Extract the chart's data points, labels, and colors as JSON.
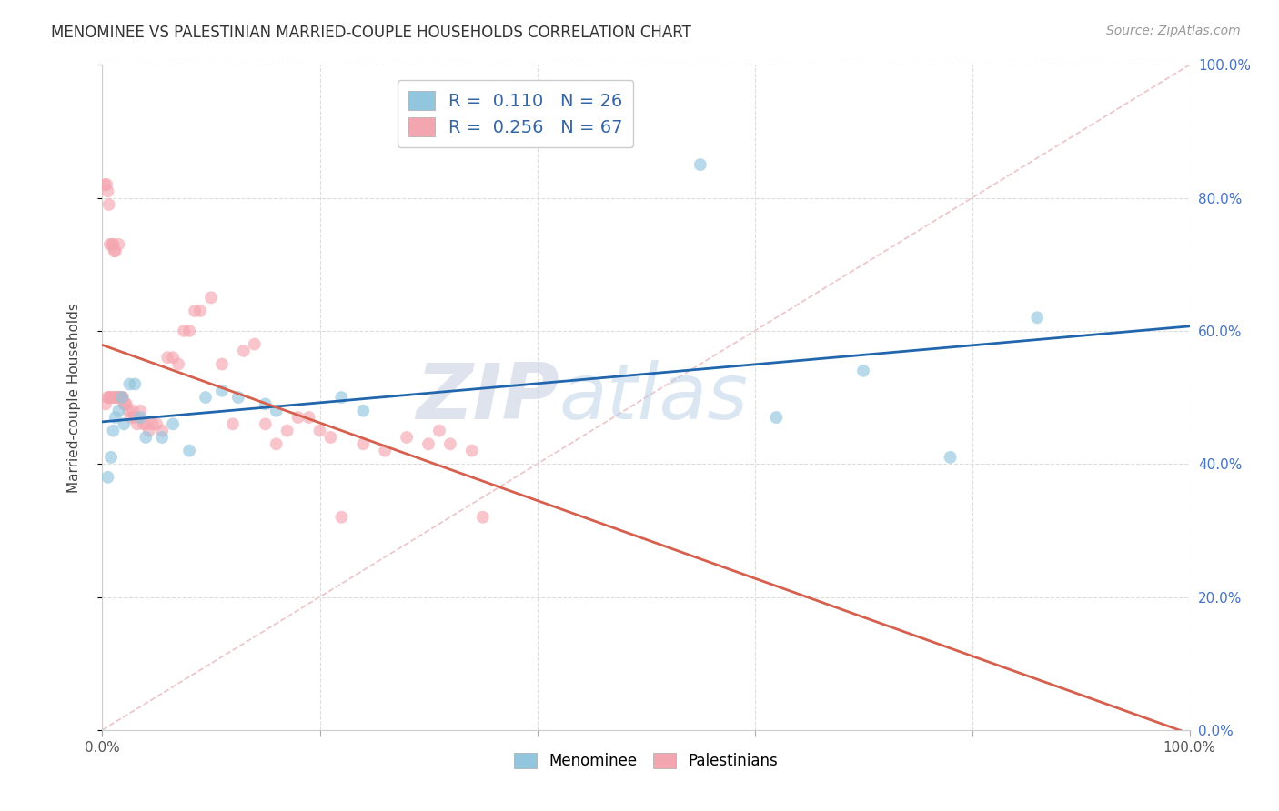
{
  "title": "MENOMINEE VS PALESTINIAN MARRIED-COUPLE HOUSEHOLDS CORRELATION CHART",
  "source": "Source: ZipAtlas.com",
  "ylabel": "Married-couple Households",
  "xlim": [
    0,
    1
  ],
  "ylim": [
    0,
    1
  ],
  "watermark_zip": "ZIP",
  "watermark_atlas": "atlas",
  "legend_men_r": "0.110",
  "legend_men_n": "26",
  "legend_pal_r": "0.256",
  "legend_pal_n": "67",
  "menominee_color": "#92c5de",
  "palestinians_color": "#f4a6b0",
  "menominee_line_color": "#2166ac",
  "palestinians_line_color": "#d6604d",
  "ref_line_color": "#cccccc",
  "grid_color": "#dddddd",
  "background_color": "#ffffff",
  "title_color": "#333333",
  "source_color": "#999999",
  "ytick_color": "#4472c4",
  "xtick_color": "#555555",
  "menominee_x": [
    0.005,
    0.008,
    0.01,
    0.012,
    0.015,
    0.018,
    0.02,
    0.025,
    0.03,
    0.035,
    0.04,
    0.055,
    0.065,
    0.08,
    0.095,
    0.11,
    0.125,
    0.15,
    0.16,
    0.22,
    0.24,
    0.55,
    0.62,
    0.7,
    0.78,
    0.86
  ],
  "menominee_y": [
    0.38,
    0.41,
    0.45,
    0.47,
    0.48,
    0.5,
    0.46,
    0.52,
    0.52,
    0.47,
    0.44,
    0.44,
    0.46,
    0.42,
    0.5,
    0.51,
    0.5,
    0.49,
    0.48,
    0.5,
    0.48,
    0.85,
    0.47,
    0.54,
    0.41,
    0.62
  ],
  "palestinians_x": [
    0.002,
    0.003,
    0.004,
    0.005,
    0.005,
    0.006,
    0.006,
    0.007,
    0.007,
    0.008,
    0.009,
    0.01,
    0.01,
    0.011,
    0.012,
    0.012,
    0.013,
    0.014,
    0.015,
    0.015,
    0.016,
    0.017,
    0.018,
    0.019,
    0.02,
    0.021,
    0.022,
    0.024,
    0.026,
    0.028,
    0.03,
    0.032,
    0.035,
    0.038,
    0.04,
    0.043,
    0.046,
    0.05,
    0.055,
    0.06,
    0.065,
    0.07,
    0.075,
    0.08,
    0.085,
    0.09,
    0.1,
    0.11,
    0.12,
    0.13,
    0.14,
    0.15,
    0.16,
    0.17,
    0.18,
    0.19,
    0.2,
    0.21,
    0.22,
    0.24,
    0.26,
    0.28,
    0.3,
    0.31,
    0.32,
    0.34,
    0.35
  ],
  "palestinians_y": [
    0.82,
    0.49,
    0.82,
    0.5,
    0.81,
    0.5,
    0.79,
    0.5,
    0.73,
    0.5,
    0.73,
    0.5,
    0.73,
    0.72,
    0.5,
    0.72,
    0.5,
    0.5,
    0.5,
    0.73,
    0.5,
    0.5,
    0.5,
    0.5,
    0.49,
    0.49,
    0.49,
    0.48,
    0.47,
    0.48,
    0.47,
    0.46,
    0.48,
    0.46,
    0.46,
    0.45,
    0.46,
    0.46,
    0.45,
    0.56,
    0.56,
    0.55,
    0.6,
    0.6,
    0.63,
    0.63,
    0.65,
    0.55,
    0.46,
    0.57,
    0.58,
    0.46,
    0.43,
    0.45,
    0.47,
    0.47,
    0.45,
    0.44,
    0.32,
    0.43,
    0.42,
    0.44,
    0.43,
    0.45,
    0.43,
    0.42,
    0.32
  ],
  "scatter_size": 100,
  "scatter_alpha": 0.65,
  "line_width": 2.0,
  "yticks": [
    0.0,
    0.2,
    0.4,
    0.6,
    0.8,
    1.0
  ],
  "ytick_labels": [
    "0.0%",
    "20.0%",
    "40.0%",
    "60.0%",
    "80.0%",
    "100.0%"
  ]
}
